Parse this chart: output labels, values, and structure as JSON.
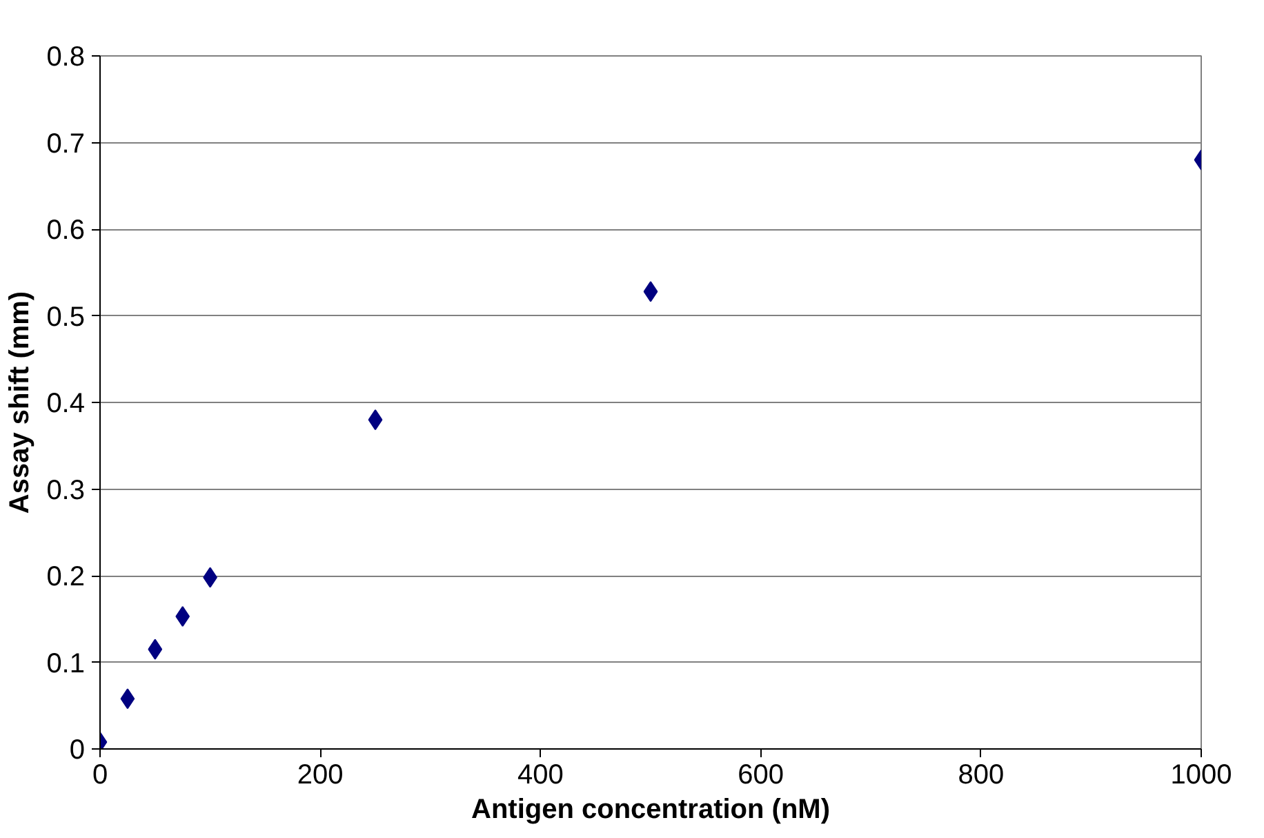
{
  "chart_data": {
    "type": "scatter",
    "xlabel": "Antigen concentration (nM)",
    "ylabel": "Assay shift (mm)",
    "x": [
      0,
      25,
      50,
      75,
      100,
      250,
      500,
      1000
    ],
    "series": [
      {
        "color": "#000080",
        "values": [
          0.008,
          0.058,
          0.115,
          0.153,
          0.198,
          0.38,
          0.528,
          0.68
        ]
      }
    ],
    "xlim": [
      0,
      1000
    ],
    "xticks": [
      0,
      200,
      400,
      600,
      800,
      1000
    ],
    "ylim": [
      0,
      0.8
    ],
    "yticks": [
      {
        "value": 0,
        "label": "0"
      },
      0.1,
      0.2,
      0.3,
      0.4,
      0.5,
      0.6,
      0.7,
      0.8
    ],
    "grid": "y",
    "marker": "diamond"
  }
}
